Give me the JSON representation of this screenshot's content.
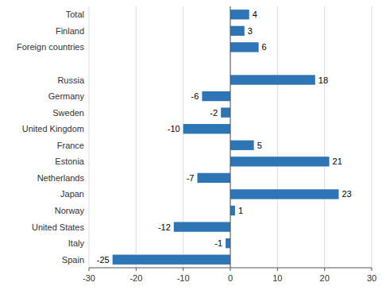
{
  "chart_data": {
    "type": "bar",
    "orientation": "horizontal",
    "categories": [
      "Total",
      "Finland",
      "Foreign countries",
      null,
      "Russia",
      "Germany",
      "Sweden",
      "United Kingdom",
      "France",
      "Estonia",
      "Netherlands",
      "Japan",
      "Norway",
      "United States",
      "Italy",
      "Spain"
    ],
    "values": [
      4,
      3,
      6,
      null,
      18,
      -6,
      -2,
      -10,
      5,
      21,
      -7,
      23,
      1,
      -12,
      -1,
      -25
    ],
    "color": "#2E75B6",
    "xlim": [
      -30,
      30
    ],
    "xticks": [
      -30,
      -20,
      -10,
      0,
      10,
      20,
      30
    ],
    "grid": true,
    "data_labels": true
  }
}
